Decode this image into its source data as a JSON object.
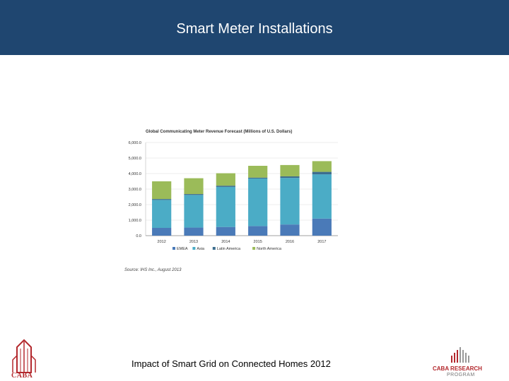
{
  "header": {
    "title": "Smart Meter Installations"
  },
  "chart_data": {
    "type": "bar",
    "stacked": true,
    "title": "Global Communicating Meter Revenue Forecast (Millions of U.S. Dollars)",
    "categories": [
      "2012",
      "2013",
      "2014",
      "2015",
      "2016",
      "2017"
    ],
    "series": [
      {
        "name": "EMEA",
        "color": "#4a7ab8",
        "values": [
          500,
          520,
          560,
          620,
          720,
          1100
        ]
      },
      {
        "name": "Asia",
        "color": "#4bacc6",
        "values": [
          1800,
          2100,
          2580,
          3060,
          3000,
          2850
        ]
      },
      {
        "name": "Latin America",
        "color": "#3d6e8f",
        "values": [
          60,
          60,
          80,
          60,
          100,
          160
        ]
      },
      {
        "name": "North America",
        "color": "#9bbb59",
        "values": [
          1140,
          1020,
          800,
          760,
          730,
          690
        ]
      }
    ],
    "yticks": [
      "0.0",
      "1,000.0",
      "2,000.0",
      "3,000.0",
      "4,000.0",
      "5,000.0",
      "6,000.0"
    ],
    "ylim": [
      0,
      6000
    ],
    "grid": true,
    "legend_position": "bottom"
  },
  "source": "Source: IHS Inc., August 2013",
  "footer": {
    "text": "Impact of Smart Grid on Connected Homes 2012"
  },
  "logos": {
    "left": "CABA",
    "right_line1": "CABA RESEARCH",
    "right_line2": "PROGRAM"
  }
}
